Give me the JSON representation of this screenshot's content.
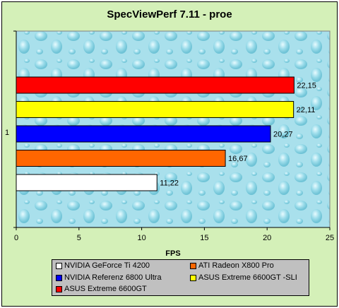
{
  "chart_data": {
    "type": "bar",
    "orientation": "horizontal",
    "title": "SpecViewPerf 7.11 - proe",
    "xlabel": "FPS",
    "ylabel": "",
    "category_label": "1",
    "xlim": [
      0,
      25
    ],
    "xticks": [
      "0",
      "5",
      "10",
      "15",
      "20",
      "25"
    ],
    "grid": false,
    "legend_position": "bottom",
    "series": [
      {
        "name": "ASUS Extreme 6600GT",
        "value": 22.15,
        "label": "22,15",
        "color": "#ff0000"
      },
      {
        "name": "ASUS Extreme 6600GT -SLI",
        "value": 22.11,
        "label": "22,11",
        "color": "#ffff00"
      },
      {
        "name": "NVIDIA  Referenz 6800 Ultra",
        "value": 20.27,
        "label": "20,27",
        "color": "#0000ff"
      },
      {
        "name": "ATI Radeon X800 Pro",
        "value": 16.67,
        "label": "16,67",
        "color": "#ff6600"
      },
      {
        "name": "NVIDIA GeForce Ti 4200",
        "value": 11.22,
        "label": "11,22",
        "color": "#ffffff"
      }
    ],
    "legend_entries": [
      {
        "name": "NVIDIA GeForce Ti 4200",
        "color": "#ffffff"
      },
      {
        "name": "ATI Radeon X800 Pro",
        "color": "#ff6600"
      },
      {
        "name": "NVIDIA  Referenz 6800 Ultra",
        "color": "#0000ff"
      },
      {
        "name": "ASUS Extreme 6600GT -SLI",
        "color": "#ffff00"
      },
      {
        "name": "ASUS Extreme 6600GT",
        "color": "#ff0000"
      }
    ]
  }
}
